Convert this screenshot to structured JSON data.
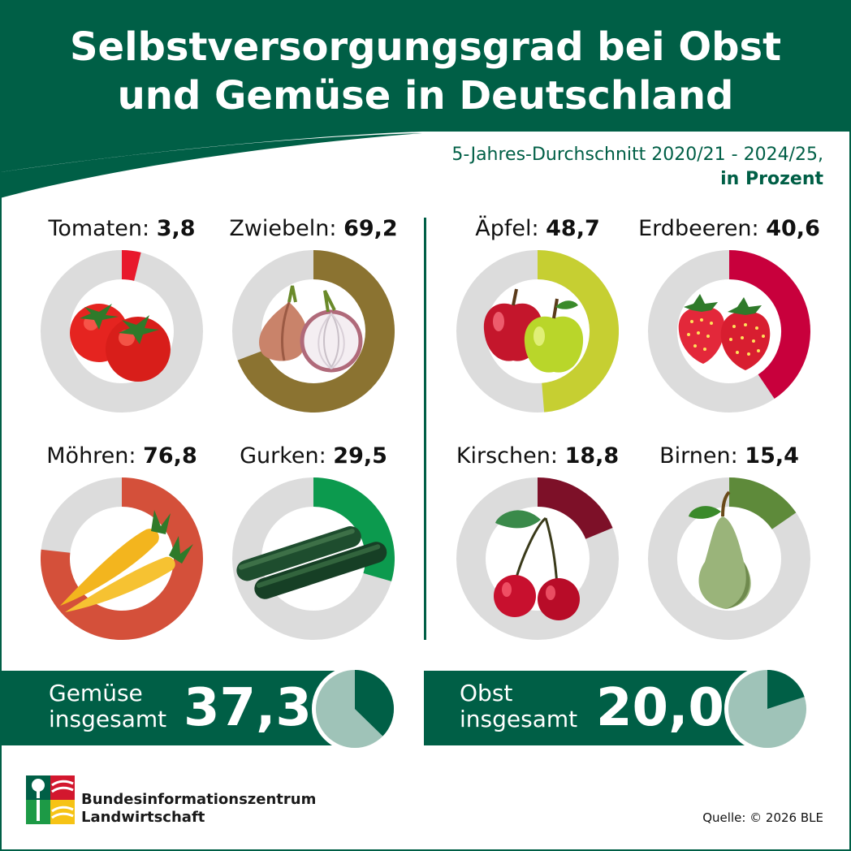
{
  "header": {
    "title_line1": "Selbstversorgungsgrad bei Obst",
    "title_line2": "und Gemüse in Deutschland",
    "subtitle_line1": "5-Jahres-Durchschnitt  2020/21 - 2024/25,",
    "subtitle_line2": "in Prozent"
  },
  "chart_data": {
    "type": "donut",
    "unit": "Prozent",
    "max": 100,
    "items": [
      {
        "name": "Tomaten",
        "label": "Tomaten:",
        "value": 3.8,
        "value_text": "3,8",
        "color": "#e8192c",
        "icon": "tomato-icon"
      },
      {
        "name": "Zwiebeln",
        "label": "Zwiebeln:",
        "value": 69.2,
        "value_text": "69,2",
        "color": "#8b7331",
        "icon": "onion-icon"
      },
      {
        "name": "Äpfel",
        "label": "Äpfel:",
        "value": 48.7,
        "value_text": "48,7",
        "color": "#c6cf32",
        "icon": "apple-icon"
      },
      {
        "name": "Erdbeeren",
        "label": "Erdbeeren:",
        "value": 40.6,
        "value_text": "40,6",
        "color": "#c8003c",
        "icon": "strawberry-icon"
      },
      {
        "name": "Möhren",
        "label": "Möhren:",
        "value": 76.8,
        "value_text": "76,8",
        "color": "#d4503a",
        "icon": "carrot-icon"
      },
      {
        "name": "Gurken",
        "label": "Gurken:",
        "value": 29.5,
        "value_text": "29,5",
        "color": "#0c9a4e",
        "icon": "cucumber-icon"
      },
      {
        "name": "Kirschen",
        "label": "Kirschen:",
        "value": 18.8,
        "value_text": "18,8",
        "color": "#7d1028",
        "icon": "cherry-icon"
      },
      {
        "name": "Birnen",
        "label": "Birnen:",
        "value": 15.4,
        "value_text": "15,4",
        "color": "#5e8a3a",
        "icon": "pear-icon"
      }
    ],
    "totals": [
      {
        "label_line1": "Gemüse",
        "label_line2": "insgesamt",
        "value": 37.3,
        "value_text": "37,3"
      },
      {
        "label_line1": "Obst",
        "label_line2": "insgesamt",
        "value": 20.0,
        "value_text": "20,0"
      }
    ],
    "track_color": "#dcdcdc",
    "total_fill_color": "#005f46",
    "total_rest_color": "#9fc3b8"
  },
  "footer": {
    "org_line1": "Bundesinformationszentrum",
    "org_line2": "Landwirtschaft",
    "source": "Quelle: © 2026 BLE"
  }
}
